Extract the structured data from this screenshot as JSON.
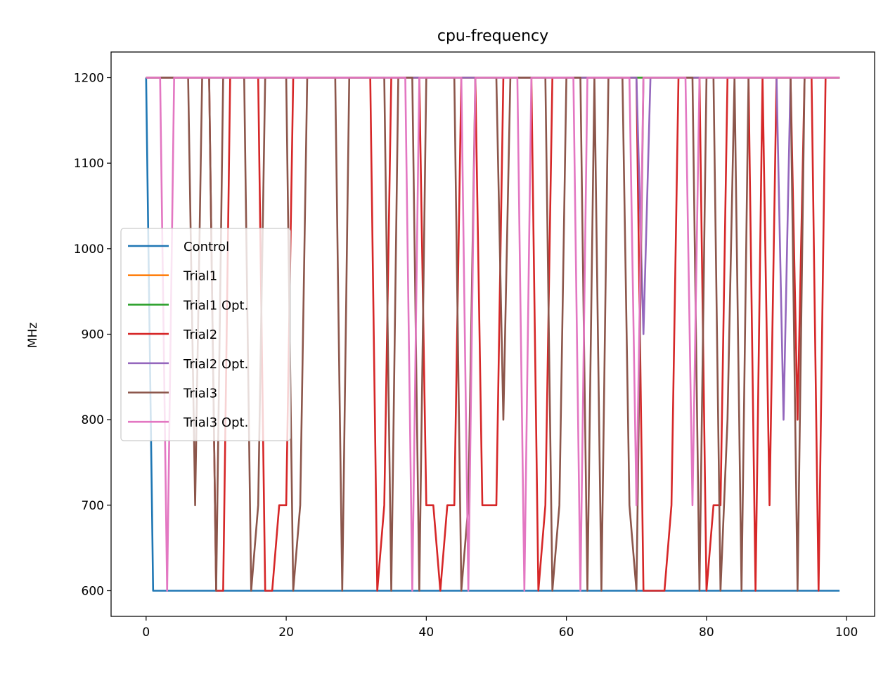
{
  "chart_data": {
    "type": "line",
    "title": "cpu-frequency",
    "xlabel": "",
    "ylabel": "MHz",
    "xlim": [
      -5,
      104
    ],
    "ylim": [
      570,
      1230
    ],
    "xticks": [
      0,
      20,
      40,
      60,
      80,
      100
    ],
    "yticks": [
      600,
      700,
      800,
      900,
      1000,
      1100,
      1200
    ],
    "grid": false,
    "legend_position": "center-left",
    "series": [
      {
        "name": "Control",
        "color": "#1f77b4",
        "values": [
          1200,
          600,
          600,
          600,
          600,
          600,
          600,
          600,
          600,
          600,
          600,
          600,
          600,
          600,
          600,
          600,
          600,
          600,
          600,
          600,
          600,
          600,
          600,
          600,
          600,
          600,
          600,
          600,
          600,
          600,
          600,
          600,
          600,
          600,
          600,
          600,
          600,
          600,
          600,
          600,
          600,
          600,
          600,
          600,
          600,
          600,
          600,
          600,
          600,
          600,
          600,
          600,
          600,
          600,
          600,
          600,
          600,
          600,
          600,
          600,
          600,
          600,
          600,
          600,
          600,
          600,
          600,
          600,
          600,
          600,
          600,
          600,
          600,
          600,
          600,
          600,
          600,
          600,
          600,
          600,
          600,
          600,
          600,
          600,
          600,
          600,
          600,
          600,
          600,
          600,
          600,
          600,
          600,
          600,
          600,
          600,
          600,
          600,
          600,
          600
        ]
      },
      {
        "name": "Trial1",
        "color": "#ff7f0e",
        "values": [
          1200,
          1200,
          1200,
          1200,
          1200,
          1200,
          1200,
          1200,
          1200,
          1200,
          1200,
          1200,
          1200,
          1200,
          1200,
          1200,
          1200,
          1200,
          1200,
          1200,
          1200,
          1200,
          1200,
          1200,
          1200,
          1200,
          1200,
          1200,
          1200,
          1200,
          1200,
          1200,
          1200,
          1200,
          1200,
          1200,
          1200,
          1200,
          1200,
          1200,
          1200,
          1200,
          1200,
          1200,
          1200,
          1200,
          1200,
          1200,
          1200,
          1200,
          1200,
          1200,
          1200,
          1200,
          1200,
          1200,
          1200,
          1200,
          1200,
          1200,
          1200,
          1200,
          1200,
          1200,
          1200,
          1200,
          1200,
          1200,
          1200,
          1200,
          1200,
          1200,
          1200,
          1200,
          1200,
          1200,
          1200,
          1200,
          1200,
          1200,
          1200,
          1200,
          1200,
          1200,
          1200,
          1200,
          1200,
          1200,
          1200,
          1200,
          1200,
          1200,
          1200,
          1200,
          1200,
          1200,
          1200,
          1200,
          1200,
          1200
        ]
      },
      {
        "name": "Trial1 Opt.",
        "color": "#2ca02c",
        "values": [
          1200,
          1200,
          1200,
          1200,
          1200,
          1200,
          1200,
          1200,
          1200,
          1200,
          1200,
          1200,
          1200,
          1200,
          1200,
          1200,
          1200,
          1200,
          1200,
          1200,
          1200,
          1200,
          1200,
          1200,
          1200,
          1200,
          1200,
          1200,
          1200,
          1200,
          1200,
          1200,
          1200,
          1200,
          1200,
          1200,
          1200,
          1200,
          1200,
          1200,
          1200,
          1200,
          1200,
          1200,
          1200,
          1200,
          1200,
          1200,
          1200,
          1200,
          1200,
          1200,
          1200,
          1200,
          1200,
          1200,
          1200,
          1200,
          1200,
          1200,
          1200,
          1200,
          1200,
          1200,
          1200,
          1200,
          1200,
          1200,
          1200,
          1200,
          1200,
          1200,
          1200,
          1200,
          1200,
          1200,
          1200,
          1200,
          1200,
          1200,
          1200,
          1200,
          1200,
          1200,
          1200,
          1200,
          1200,
          1200,
          1200,
          1200,
          1200,
          1200,
          1200,
          1200,
          1200,
          1200,
          1200,
          1200,
          1200,
          1200
        ]
      },
      {
        "name": "Trial2",
        "color": "#d62728",
        "values": [
          1200,
          1200,
          1200,
          1200,
          1200,
          1200,
          1200,
          1200,
          1200,
          1200,
          600,
          600,
          1200,
          1200,
          1200,
          1200,
          1200,
          600,
          600,
          700,
          700,
          1200,
          1200,
          1200,
          1200,
          1200,
          1200,
          1200,
          1200,
          1200,
          1200,
          1200,
          1200,
          600,
          700,
          1200,
          1200,
          1200,
          1200,
          1200,
          700,
          700,
          600,
          700,
          700,
          1200,
          1200,
          1200,
          700,
          700,
          700,
          1200,
          1200,
          1200,
          1200,
          1200,
          600,
          700,
          1200,
          1200,
          1200,
          1200,
          1200,
          1200,
          1200,
          1200,
          1200,
          1200,
          1200,
          1200,
          1200,
          600,
          600,
          600,
          600,
          700,
          1200,
          1200,
          1200,
          1200,
          600,
          700,
          700,
          1200,
          1200,
          1200,
          1200,
          600,
          1200,
          700,
          1200,
          1200,
          1200,
          800,
          1200,
          1200,
          600,
          1200,
          1200,
          1200
        ]
      },
      {
        "name": "Trial2 Opt.",
        "color": "#9467bd",
        "values": [
          1200,
          1200,
          1200,
          1200,
          1200,
          1200,
          1200,
          1200,
          1200,
          1200,
          1200,
          1200,
          1200,
          1200,
          1200,
          1200,
          1200,
          1200,
          1200,
          1200,
          1200,
          1200,
          1200,
          1200,
          1200,
          1200,
          1200,
          1200,
          1200,
          1200,
          1200,
          1200,
          1200,
          1200,
          1200,
          1200,
          1200,
          1200,
          1200,
          1200,
          1200,
          1200,
          1200,
          1200,
          1200,
          1200,
          1200,
          1200,
          1200,
          1200,
          1200,
          1200,
          1200,
          1200,
          1200,
          1200,
          1200,
          1200,
          1200,
          1200,
          1200,
          1200,
          1200,
          1200,
          1200,
          1200,
          1200,
          1200,
          1200,
          1200,
          1200,
          900,
          1200,
          1200,
          1200,
          1200,
          1200,
          1200,
          1200,
          1200,
          1200,
          1200,
          1200,
          1200,
          1200,
          1200,
          1200,
          1200,
          1200,
          1200,
          1200,
          800,
          1200,
          1200,
          1200,
          1200,
          1200,
          1200,
          1200,
          1200
        ]
      },
      {
        "name": "Trial3",
        "color": "#8c564b",
        "values": [
          1200,
          1200,
          1200,
          1200,
          1200,
          1200,
          1200,
          700,
          1200,
          1200,
          600,
          1200,
          1200,
          1200,
          1200,
          600,
          700,
          1200,
          1200,
          1200,
          1200,
          600,
          700,
          1200,
          1200,
          1200,
          1200,
          1200,
          600,
          1200,
          1200,
          1200,
          1200,
          1200,
          1200,
          600,
          1200,
          1200,
          1200,
          600,
          1200,
          1200,
          1200,
          1200,
          1200,
          600,
          700,
          1200,
          1200,
          1200,
          1200,
          800,
          1200,
          1200,
          1200,
          1200,
          1200,
          1200,
          600,
          700,
          1200,
          1200,
          1200,
          600,
          1200,
          600,
          1200,
          1200,
          1200,
          700,
          600,
          1200,
          1200,
          1200,
          1200,
          1200,
          1200,
          1200,
          1200,
          600,
          1200,
          1200,
          600,
          800,
          1200,
          600,
          1200,
          1200,
          1200,
          1200,
          1200,
          1200,
          1200,
          600,
          1200,
          1200,
          1200,
          1200,
          1200,
          1200
        ]
      },
      {
        "name": "Trial3 Opt.",
        "color": "#e377c2",
        "values": [
          1200,
          1200,
          1200,
          600,
          1200,
          1200,
          1200,
          1200,
          1200,
          1200,
          1200,
          1200,
          1200,
          1200,
          1200,
          1200,
          1200,
          1200,
          1200,
          1200,
          1200,
          1200,
          1200,
          1200,
          1200,
          1200,
          1200,
          1200,
          1200,
          1200,
          1200,
          1200,
          1200,
          1200,
          1200,
          1200,
          1200,
          1200,
          600,
          1200,
          1200,
          1200,
          1200,
          1200,
          1200,
          1200,
          600,
          1200,
          1200,
          1200,
          1200,
          1200,
          1200,
          1200,
          600,
          1200,
          1200,
          1200,
          1200,
          1200,
          1200,
          1200,
          600,
          1200,
          1200,
          1200,
          1200,
          1200,
          1200,
          1200,
          700,
          1200,
          1200,
          1200,
          1200,
          1200,
          1200,
          1200,
          700,
          1200,
          1200,
          1200,
          1200,
          1200,
          1200,
          1200,
          1200,
          1200,
          1200,
          1200,
          1200,
          1200,
          1200,
          1200,
          1200,
          1200,
          1200,
          1200,
          1200,
          1200
        ]
      }
    ]
  }
}
